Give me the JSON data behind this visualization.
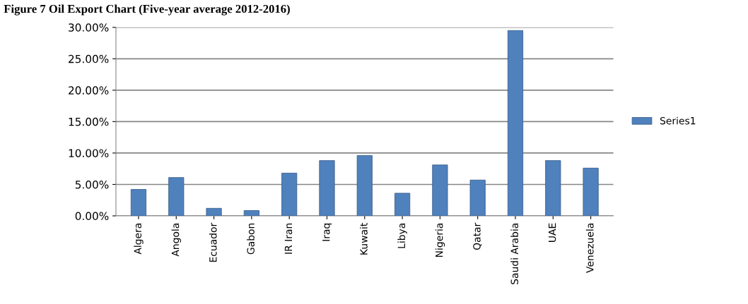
{
  "chart_data": {
    "type": "bar",
    "title": "Figure 7 Oil Export Chart (Five-year average 2012-2016)",
    "categories": [
      "Algera",
      "Angola",
      "Ecuador",
      "Gabon",
      "IR Iran",
      "Iraq",
      "Kuwait",
      "Libya",
      "Nigeria",
      "Qatar",
      "Saudi Arabia",
      "UAE",
      "Venezuela"
    ],
    "series": [
      {
        "name": "Series1",
        "color": "#4f81bd",
        "values": [
          4.2,
          6.1,
          1.2,
          0.85,
          6.8,
          8.8,
          9.6,
          3.6,
          8.1,
          5.7,
          29.5,
          8.8,
          7.6
        ]
      }
    ],
    "ylim": [
      0,
      30
    ],
    "yticks": [
      {
        "value": 0,
        "label": "0.00%"
      },
      {
        "value": 5,
        "label": "5.00%"
      },
      {
        "value": 10,
        "label": "10.00%"
      },
      {
        "value": 15,
        "label": "15.00%"
      },
      {
        "value": 20,
        "label": "20.00%"
      },
      {
        "value": 25,
        "label": "25.00%"
      },
      {
        "value": 30,
        "label": "30.00%"
      }
    ],
    "grid": "y",
    "legend": "right"
  }
}
